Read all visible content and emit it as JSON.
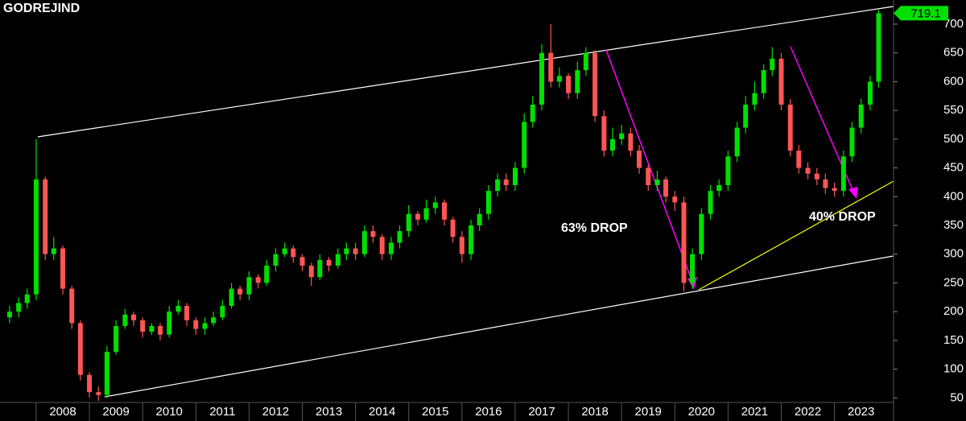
{
  "chart_data": {
    "type": "candlestick",
    "title": "GODREJIND",
    "annotations": [
      "63% DROP",
      "40% DROP"
    ],
    "last_price": 719.1,
    "up_color": "#00e000",
    "down_color": "#ff5555",
    "xlim": [
      2007.32,
      2024.11
    ],
    "ylim": [
      42,
      742
    ],
    "xticks": [
      2008,
      2009,
      2010,
      2011,
      2012,
      2013,
      2014,
      2015,
      2016,
      2017,
      2018,
      2019,
      2020,
      2021,
      2022,
      2023
    ],
    "yticks": [
      50,
      100,
      150,
      200,
      250,
      300,
      350,
      400,
      450,
      500,
      550,
      600,
      650,
      700
    ],
    "x": [
      2007.5,
      2007.67,
      2007.83,
      2008,
      2008.17,
      2008.33,
      2008.5,
      2008.67,
      2008.83,
      2009,
      2009.17,
      2009.33,
      2009.5,
      2009.67,
      2009.83,
      2010,
      2010.17,
      2010.33,
      2010.5,
      2010.67,
      2010.83,
      2011,
      2011.17,
      2011.33,
      2011.5,
      2011.67,
      2011.83,
      2012,
      2012.17,
      2012.33,
      2012.5,
      2012.67,
      2012.83,
      2013,
      2013.17,
      2013.33,
      2013.5,
      2013.67,
      2013.83,
      2014,
      2014.17,
      2014.33,
      2014.5,
      2014.67,
      2014.83,
      2015,
      2015.17,
      2015.33,
      2015.5,
      2015.67,
      2015.83,
      2016,
      2016.17,
      2016.33,
      2016.5,
      2016.67,
      2016.83,
      2017,
      2017.17,
      2017.33,
      2017.5,
      2017.67,
      2017.83,
      2018,
      2018.17,
      2018.33,
      2018.5,
      2018.67,
      2018.83,
      2019,
      2019.17,
      2019.33,
      2019.5,
      2019.67,
      2019.83,
      2020,
      2020.17,
      2020.33,
      2020.5,
      2020.67,
      2020.83,
      2021,
      2021.17,
      2021.33,
      2021.5,
      2021.67,
      2021.83,
      2022,
      2022.17,
      2022.33,
      2022.5,
      2022.67,
      2022.83,
      2023,
      2023.17,
      2023.33,
      2023.5,
      2023.67,
      2023.83
    ],
    "open": [
      190,
      200,
      215,
      230,
      430,
      300,
      310,
      240,
      180,
      90,
      60,
      55,
      130,
      175,
      195,
      185,
      165,
      175,
      160,
      200,
      210,
      185,
      170,
      180,
      190,
      210,
      240,
      230,
      260,
      250,
      280,
      300,
      310,
      295,
      280,
      260,
      290,
      280,
      300,
      310,
      300,
      340,
      330,
      300,
      320,
      340,
      370,
      360,
      380,
      390,
      360,
      330,
      300,
      350,
      370,
      410,
      430,
      420,
      450,
      530,
      560,
      650,
      600,
      610,
      580,
      620,
      650,
      540,
      480,
      500,
      510,
      480,
      450,
      420,
      430,
      400,
      390,
      250,
      300,
      370,
      410,
      420,
      470,
      520,
      560,
      580,
      620,
      640,
      560,
      480,
      450,
      440,
      430,
      415,
      410,
      470,
      520,
      560,
      600
    ],
    "high": [
      210,
      225,
      240,
      500,
      435,
      330,
      315,
      245,
      185,
      95,
      70,
      140,
      185,
      205,
      200,
      190,
      180,
      180,
      210,
      220,
      215,
      190,
      190,
      200,
      220,
      250,
      245,
      270,
      265,
      290,
      310,
      320,
      315,
      300,
      285,
      300,
      295,
      310,
      320,
      320,
      350,
      350,
      335,
      330,
      350,
      385,
      375,
      395,
      400,
      395,
      365,
      340,
      360,
      380,
      420,
      440,
      440,
      460,
      545,
      575,
      665,
      700,
      625,
      615,
      635,
      660,
      655,
      550,
      520,
      525,
      520,
      490,
      455,
      445,
      435,
      410,
      400,
      310,
      380,
      420,
      430,
      480,
      530,
      575,
      600,
      630,
      660,
      650,
      570,
      490,
      460,
      450,
      440,
      425,
      480,
      530,
      570,
      610,
      725
    ],
    "low": [
      180,
      190,
      205,
      220,
      290,
      290,
      230,
      170,
      80,
      50,
      45,
      50,
      125,
      170,
      175,
      155,
      160,
      150,
      155,
      195,
      175,
      160,
      160,
      175,
      185,
      205,
      220,
      220,
      240,
      245,
      270,
      295,
      285,
      270,
      245,
      255,
      270,
      275,
      290,
      290,
      295,
      320,
      290,
      290,
      310,
      330,
      350,
      355,
      370,
      350,
      320,
      285,
      290,
      340,
      360,
      400,
      410,
      410,
      440,
      520,
      550,
      590,
      590,
      570,
      570,
      610,
      530,
      470,
      470,
      490,
      470,
      440,
      410,
      410,
      390,
      375,
      235,
      240,
      290,
      360,
      400,
      410,
      460,
      510,
      550,
      570,
      610,
      550,
      470,
      440,
      430,
      420,
      405,
      400,
      400,
      460,
      510,
      550,
      590
    ],
    "close": [
      200,
      215,
      230,
      430,
      300,
      310,
      240,
      180,
      90,
      60,
      55,
      130,
      175,
      195,
      185,
      165,
      175,
      160,
      200,
      210,
      185,
      170,
      180,
      190,
      210,
      240,
      230,
      260,
      250,
      280,
      300,
      310,
      295,
      280,
      260,
      290,
      280,
      300,
      310,
      300,
      340,
      330,
      300,
      320,
      340,
      370,
      360,
      380,
      390,
      360,
      330,
      300,
      350,
      370,
      410,
      430,
      420,
      450,
      530,
      560,
      650,
      600,
      610,
      580,
      620,
      650,
      540,
      480,
      500,
      510,
      480,
      450,
      420,
      430,
      400,
      390,
      250,
      300,
      370,
      410,
      420,
      470,
      520,
      560,
      580,
      620,
      640,
      560,
      480,
      450,
      440,
      430,
      415,
      410,
      470,
      520,
      560,
      600,
      719
    ]
  }
}
